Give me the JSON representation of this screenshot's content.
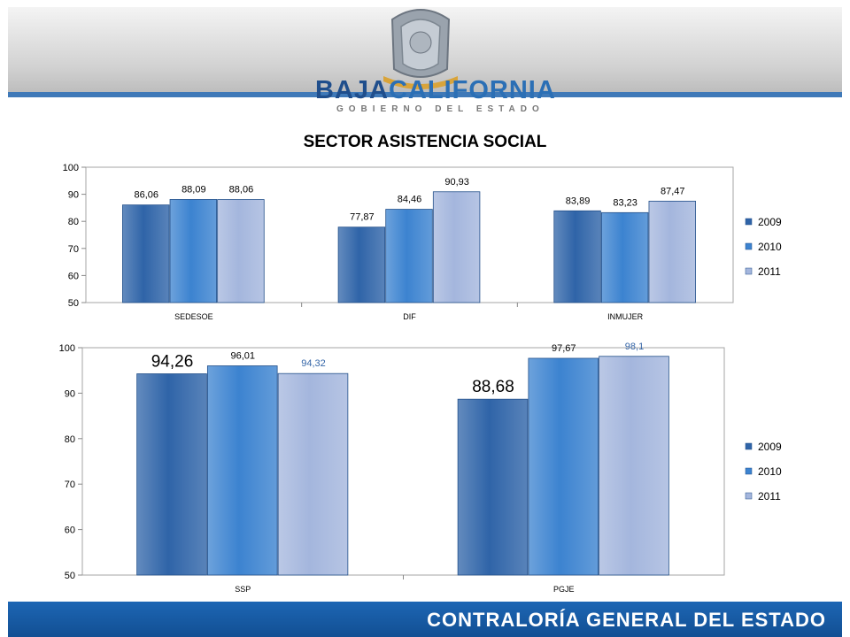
{
  "header": {
    "logo_main_1": "BAJA",
    "logo_main_2": "CALIFORNIA",
    "logo_sub": "GOBIERNO DEL ESTADO"
  },
  "footer": {
    "text": "CONTRALORÍA GENERAL DEL ESTADO"
  },
  "colors": {
    "2009": "#2f64a8",
    "2010": "#3c83d0",
    "2011": "#a4b6dd"
  },
  "chart_data": [
    {
      "type": "bar",
      "title": "SECTOR ASISTENCIA SOCIAL",
      "categories": [
        "SEDESOE",
        "DIF",
        "INMUJER"
      ],
      "series": [
        {
          "name": "2009",
          "values": [
            86.06,
            77.87,
            83.89
          ],
          "labels": [
            "86,06",
            "77,87",
            "83,89"
          ]
        },
        {
          "name": "2010",
          "values": [
            88.09,
            84.46,
            83.23
          ],
          "labels": [
            "88,09",
            "84,46",
            "83,23"
          ]
        },
        {
          "name": "2011",
          "values": [
            88.06,
            90.93,
            87.47
          ],
          "labels": [
            "88,06",
            "90,93",
            "87,47"
          ]
        }
      ],
      "yticks": [
        50,
        60,
        70,
        80,
        90,
        100
      ],
      "ylim": [
        50,
        100
      ],
      "legend": "right",
      "grid": false
    },
    {
      "type": "bar",
      "title": "",
      "categories": [
        "SSP",
        "PGJE"
      ],
      "series": [
        {
          "name": "2009",
          "values": [
            94.26,
            88.68
          ],
          "labels": [
            "94,26",
            "88,68"
          ]
        },
        {
          "name": "2010",
          "values": [
            96.01,
            97.67
          ],
          "labels": [
            "96,01",
            "97,67"
          ]
        },
        {
          "name": "2011",
          "values": [
            94.32,
            98.1
          ],
          "labels": [
            "94,32",
            "98,1"
          ]
        }
      ],
      "yticks": [
        50,
        60,
        70,
        80,
        90,
        100
      ],
      "ylim": [
        50,
        100
      ],
      "legend": "right",
      "grid": false
    }
  ]
}
